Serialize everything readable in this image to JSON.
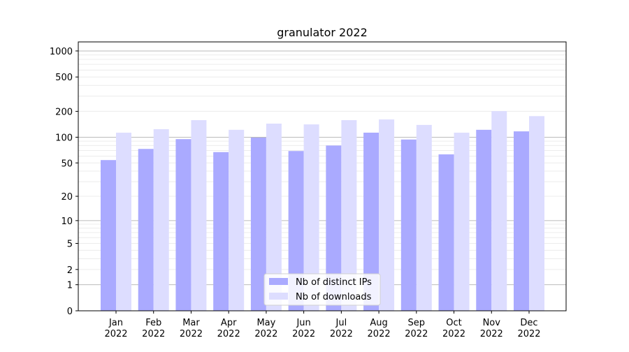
{
  "chart_data": {
    "type": "bar",
    "title": "granulator 2022",
    "xlabel": "",
    "ylabel": "",
    "y_scale": "log10(y+1)",
    "ylim": [
      0,
      1300
    ],
    "y_ticks": [
      0,
      1,
      2,
      5,
      10,
      20,
      50,
      100,
      200,
      500,
      1000
    ],
    "grid": true,
    "legend": "bottom-center",
    "categories": [
      "Jan\n2022",
      "Feb\n2022",
      "Mar\n2022",
      "Apr\n2022",
      "May\n2022",
      "Jun\n2022",
      "Jul\n2022",
      "Aug\n2022",
      "Sep\n2022",
      "Oct\n2022",
      "Nov\n2022",
      "Dec\n2022"
    ],
    "series": [
      {
        "name": "Nb of distinct IPs",
        "color": "#aaaaff",
        "values": [
          54,
          73,
          95,
          67,
          99,
          69,
          80,
          113,
          94,
          63,
          122,
          117
        ]
      },
      {
        "name": "Nb of downloads",
        "color": "#ddddff",
        "values": [
          113,
          124,
          158,
          122,
          144,
          141,
          158,
          161,
          139,
          113,
          201,
          176
        ]
      }
    ]
  }
}
